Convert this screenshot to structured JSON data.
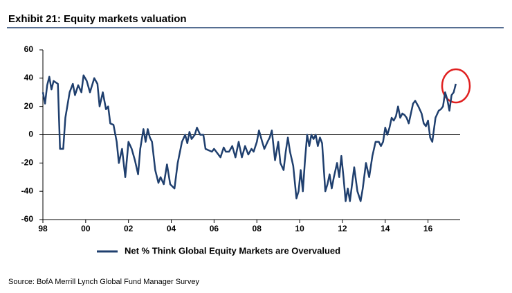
{
  "chart_data": {
    "type": "line",
    "title": "Exhibit 21: Equity markets valuation",
    "source": "Source: BofA Merrill Lynch Global Fund Manager Survey",
    "x": [
      1998.0,
      1998.1,
      1998.2,
      1998.3,
      1998.4,
      1998.5,
      1998.7,
      1998.8,
      1998.95,
      1999.05,
      1999.25,
      1999.4,
      1999.5,
      1999.65,
      1999.8,
      1999.9,
      2000.05,
      2000.2,
      2000.4,
      2000.55,
      2000.65,
      2000.8,
      2000.95,
      2001.05,
      2001.15,
      2001.3,
      2001.45,
      2001.55,
      2001.7,
      2001.85,
      2002.0,
      2002.15,
      2002.3,
      2002.45,
      2002.55,
      2002.7,
      2002.8,
      2002.9,
      2003.0,
      2003.1,
      2003.25,
      2003.4,
      2003.5,
      2003.65,
      2003.8,
      2003.95,
      2004.15,
      2004.3,
      2004.5,
      2004.65,
      2004.75,
      2004.85,
      2004.95,
      2005.1,
      2005.2,
      2005.35,
      2005.5,
      2005.6,
      2005.75,
      2005.9,
      2006.0,
      2006.15,
      2006.3,
      2006.45,
      2006.55,
      2006.7,
      2006.85,
      2007.0,
      2007.15,
      2007.3,
      2007.45,
      2007.6,
      2007.75,
      2007.85,
      2008.0,
      2008.1,
      2008.25,
      2008.35,
      2008.5,
      2008.6,
      2008.7,
      2008.85,
      2009.0,
      2009.1,
      2009.25,
      2009.35,
      2009.45,
      2009.55,
      2009.7,
      2009.85,
      2009.95,
      2010.05,
      2010.15,
      2010.25,
      2010.35,
      2010.45,
      2010.55,
      2010.65,
      2010.75,
      2010.85,
      2010.95,
      2011.05,
      2011.2,
      2011.3,
      2011.4,
      2011.5,
      2011.6,
      2011.75,
      2011.85,
      2011.95,
      2012.05,
      2012.15,
      2012.25,
      2012.35,
      2012.45,
      2012.55,
      2012.7,
      2012.85,
      2012.95,
      2013.1,
      2013.25,
      2013.4,
      2013.55,
      2013.7,
      2013.8,
      2013.9,
      2014.0,
      2014.1,
      2014.2,
      2014.3,
      2014.4,
      2014.5,
      2014.6,
      2014.7,
      2014.8,
      2014.9,
      2015.0,
      2015.1,
      2015.2,
      2015.3,
      2015.4,
      2015.55,
      2015.7,
      2015.8,
      2015.9,
      2016.0,
      2016.1,
      2016.2,
      2016.35,
      2016.5,
      2016.6,
      2016.7,
      2016.8,
      2016.9,
      2017.0,
      2017.1,
      2017.2,
      2017.3
    ],
    "series": [
      {
        "name": "Net % Think Global Equity Markets are Overvalued",
        "color": "#1f3f6e",
        "values": [
          30,
          22,
          35,
          41,
          32,
          38,
          36,
          -10,
          -10,
          12,
          30,
          36,
          28,
          35,
          30,
          42,
          38,
          30,
          40,
          36,
          20,
          30,
          18,
          20,
          8,
          7,
          -5,
          -20,
          -10,
          -30,
          -5,
          -10,
          -18,
          -28,
          -10,
          4,
          -5,
          4,
          -2,
          -5,
          -25,
          -34,
          -30,
          -35,
          -21,
          -35,
          -38,
          -20,
          -5,
          0,
          -6,
          2,
          -3,
          0,
          5,
          0,
          0,
          -10,
          -11,
          -12,
          -10,
          -13,
          -16,
          -9,
          -12,
          -12,
          -8,
          -16,
          -5,
          -16,
          -8,
          -14,
          -10,
          -12,
          -5,
          3,
          -5,
          -10,
          -5,
          -2,
          3,
          -18,
          -5,
          -20,
          -25,
          -12,
          -2,
          -12,
          -22,
          -45,
          -40,
          -25,
          -40,
          -18,
          0,
          -8,
          0,
          -3,
          0,
          -8,
          -2,
          -6,
          -40,
          -35,
          -28,
          -38,
          -30,
          -20,
          -30,
          -15,
          -30,
          -47,
          -38,
          -47,
          -35,
          -23,
          -40,
          -47,
          -38,
          -20,
          -30,
          -15,
          -5,
          -5,
          -8,
          -5,
          5,
          0,
          5,
          12,
          10,
          13,
          20,
          12,
          15,
          14,
          12,
          8,
          15,
          22,
          24,
          20,
          15,
          8,
          6,
          10,
          -2,
          -5,
          12,
          17,
          18,
          20,
          30,
          25,
          17,
          28,
          30,
          36
        ]
      }
    ],
    "xlim": [
      1998,
      2017.5
    ],
    "xticks": [
      {
        "value": 1998,
        "label": "98"
      },
      {
        "value": 2000,
        "label": "00"
      },
      {
        "value": 2002,
        "label": "02"
      },
      {
        "value": 2004,
        "label": "04"
      },
      {
        "value": 2006,
        "label": "06"
      },
      {
        "value": 2008,
        "label": "08"
      },
      {
        "value": 2010,
        "label": "10"
      },
      {
        "value": 2012,
        "label": "12"
      },
      {
        "value": 2014,
        "label": "14"
      },
      {
        "value": 2016,
        "label": "16"
      }
    ],
    "ylim": [
      -60,
      60
    ],
    "yticks": [
      -60,
      -40,
      -20,
      0,
      20,
      40,
      60
    ]
  }
}
